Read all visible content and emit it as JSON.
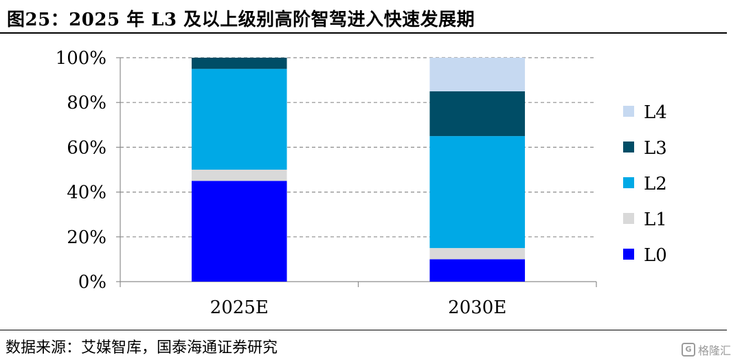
{
  "title": "图25：2025 年 L3 及以上级别高阶智驾进入快速发展期",
  "source": "数据来源：艾媒智库，国泰海通证券研究",
  "watermark": "格隆汇",
  "chart_data": {
    "type": "bar",
    "stacked": true,
    "categories": [
      "2025E",
      "2030E"
    ],
    "series": [
      {
        "name": "L0",
        "color": "#0000ff",
        "values": [
          45,
          10
        ]
      },
      {
        "name": "L1",
        "color": "#d9d9d9",
        "values": [
          5,
          5
        ]
      },
      {
        "name": "L2",
        "color": "#00a9e6",
        "values": [
          45,
          50
        ]
      },
      {
        "name": "L3",
        "color": "#004d66",
        "values": [
          5,
          20
        ]
      },
      {
        "name": "L4",
        "color": "#c6d9f1",
        "values": [
          0,
          15
        ]
      }
    ],
    "ylim": [
      0,
      100
    ],
    "yticks": [
      "0%",
      "20%",
      "40%",
      "60%",
      "80%",
      "100%"
    ],
    "ytick_values": [
      0,
      20,
      40,
      60,
      80,
      100
    ],
    "grid": true,
    "legend_position": "right",
    "legend_order": [
      "L4",
      "L3",
      "L2",
      "L1",
      "L0"
    ]
  }
}
